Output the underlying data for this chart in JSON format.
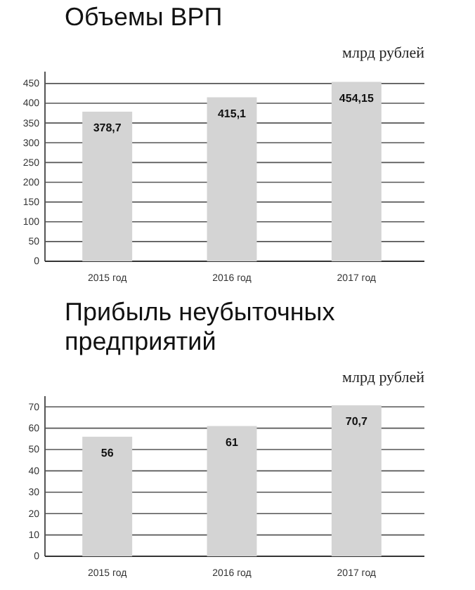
{
  "chart_data": [
    {
      "type": "bar",
      "title": "Объемы ВРП",
      "ylabel": "млрд рублей",
      "categories": [
        "2015 год",
        "2016 год",
        "2017 год"
      ],
      "values": [
        378.7,
        415.1,
        454.15
      ],
      "value_labels": [
        "378,7",
        "415,1",
        "454,15"
      ],
      "color": "#d4d4d4",
      "ylim": [
        0,
        480
      ],
      "yticks": [
        0,
        50,
        100,
        150,
        200,
        250,
        300,
        350,
        400,
        450
      ],
      "grid": "y"
    },
    {
      "type": "bar",
      "title": "Прибыль неубыточных предприятий",
      "ylabel": "млрд рублей",
      "categories": [
        "2015 год",
        "2016 год",
        "2017 год"
      ],
      "values": [
        56,
        61,
        70.7
      ],
      "value_labels": [
        "56",
        "61",
        "70,7"
      ],
      "color": "#d4d4d4",
      "ylim": [
        0,
        75
      ],
      "yticks": [
        0,
        10,
        20,
        30,
        40,
        50,
        60,
        70
      ],
      "grid": "y"
    }
  ]
}
